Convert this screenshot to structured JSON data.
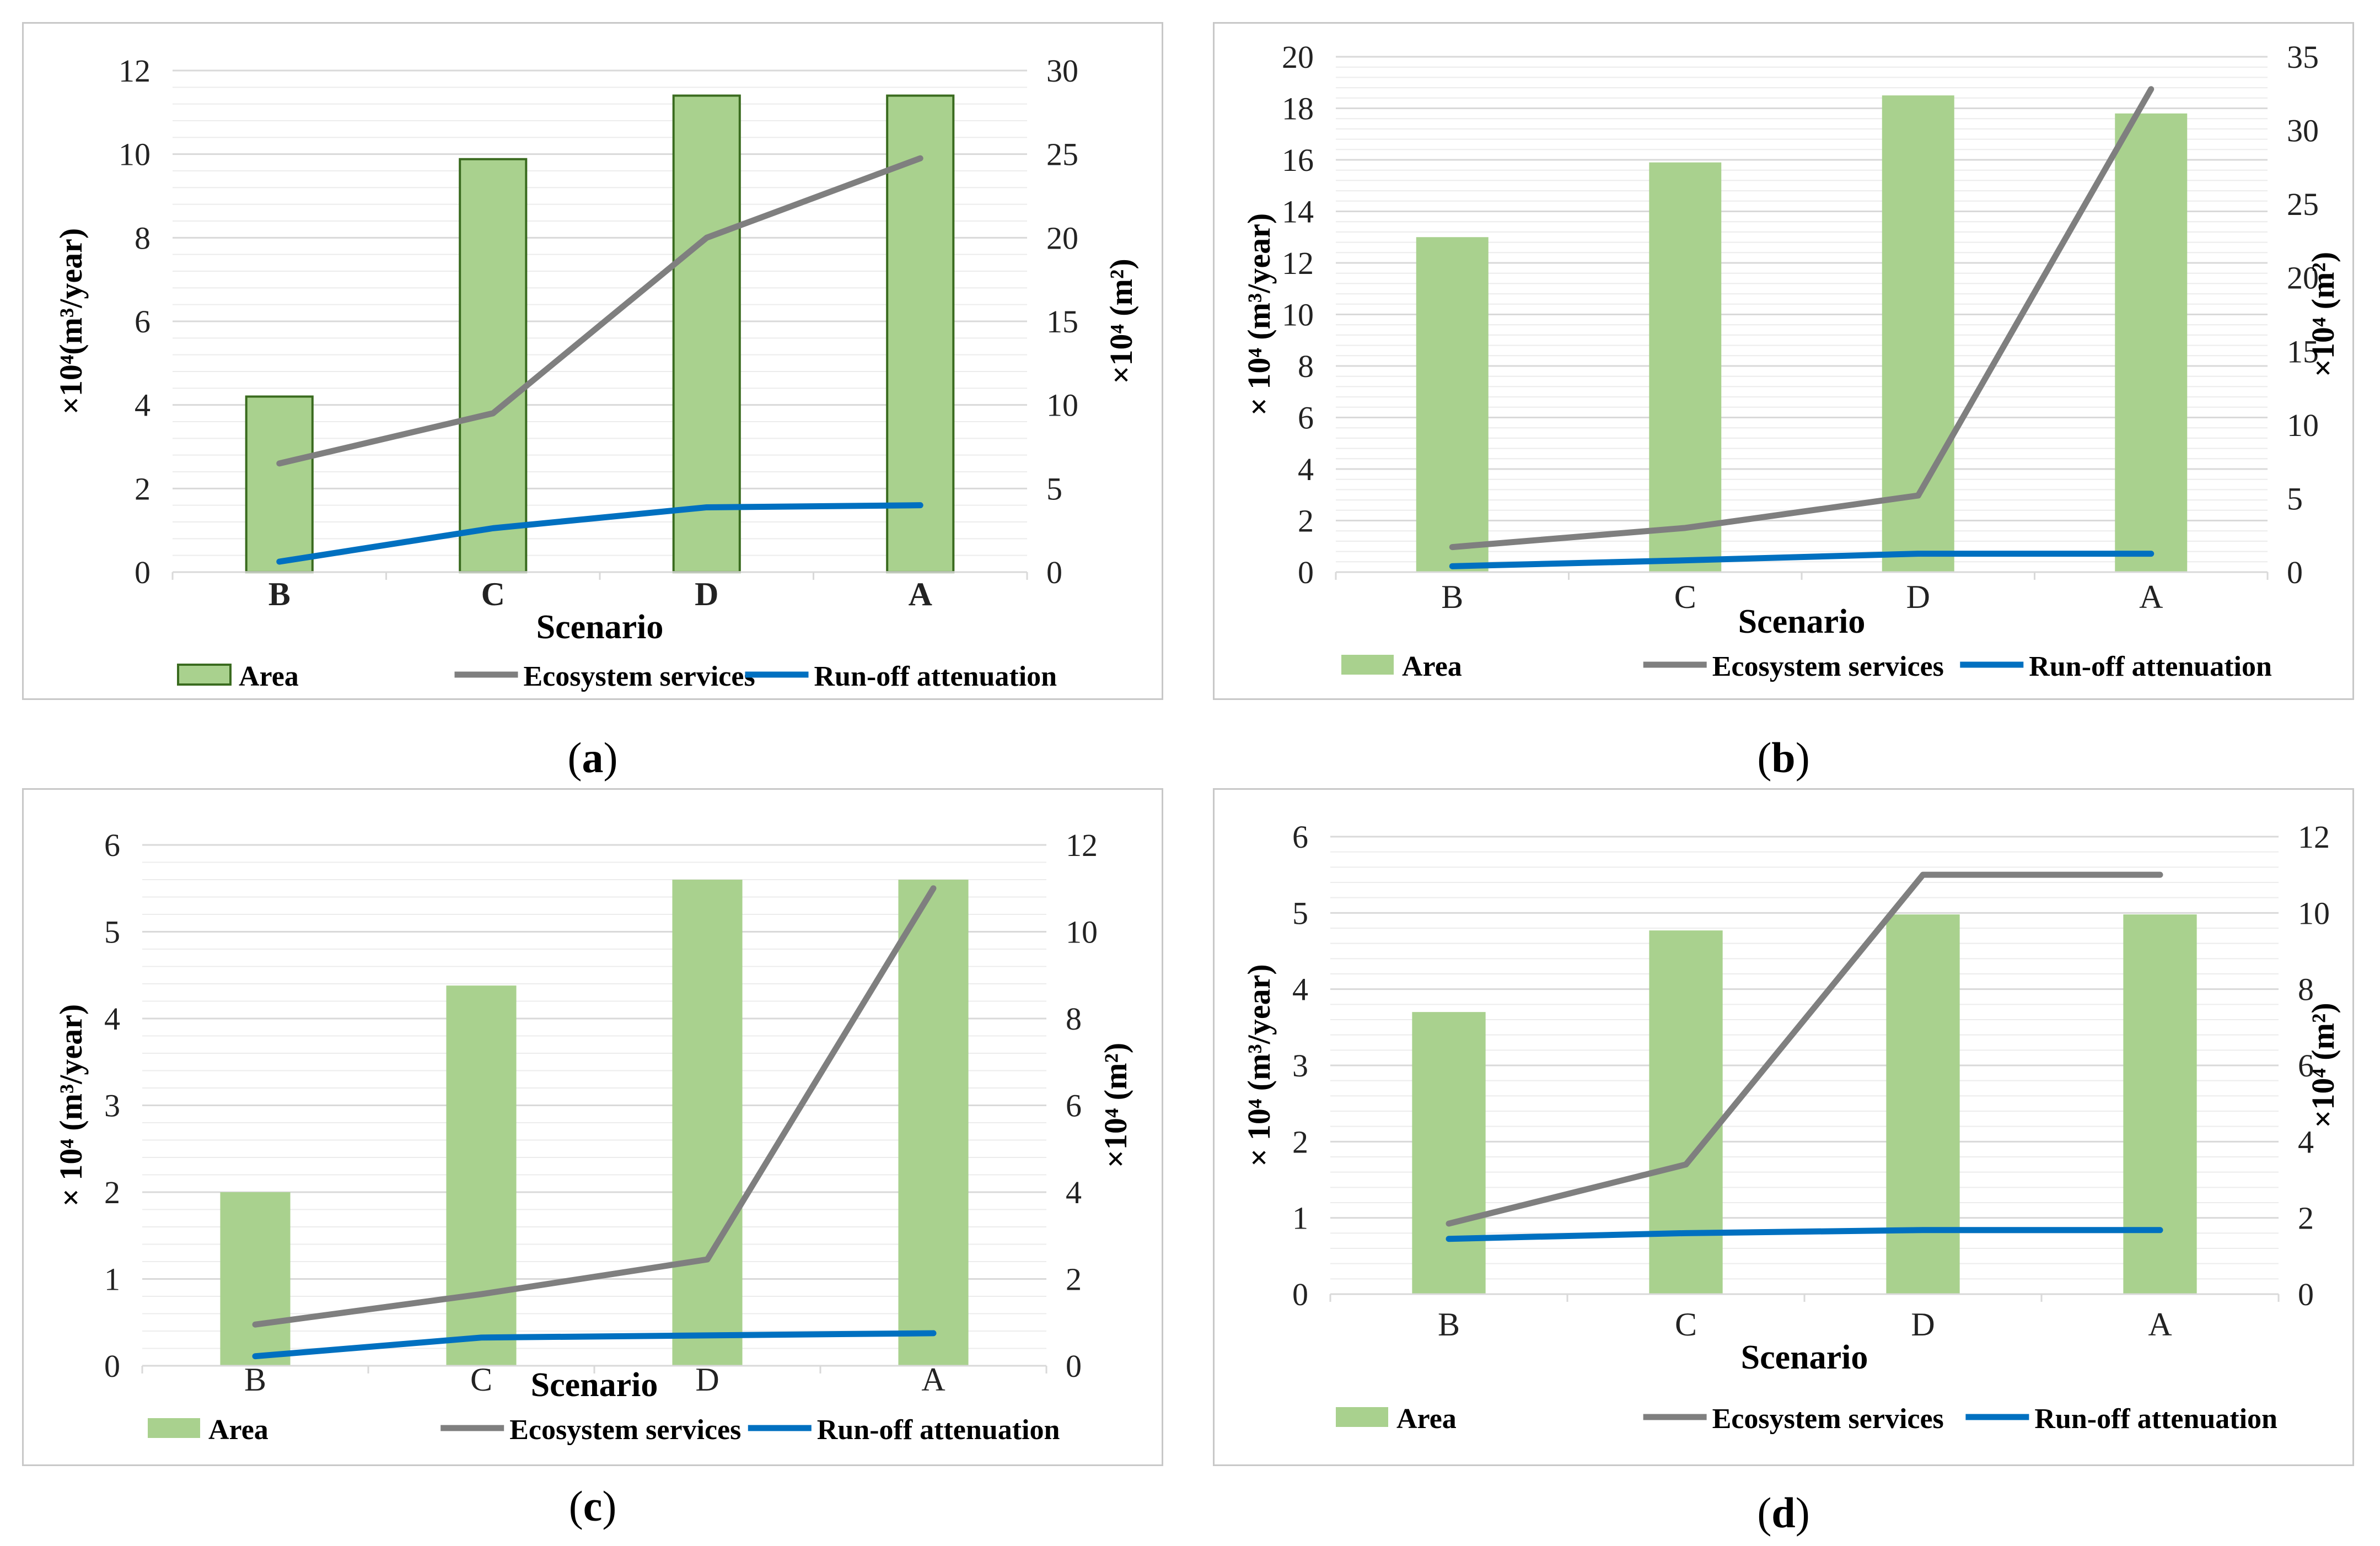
{
  "chart_data": [
    {
      "type": "bar",
      "caption_letter": "a",
      "categories": [
        "B",
        "C",
        "D",
        "A"
      ],
      "xlabel": "Scenario",
      "ylabel": "×10⁴(m³/year)",
      "y2label": "×10⁴ (m²)",
      "ylim": [
        0,
        12
      ],
      "yticks": [
        0,
        2,
        4,
        6,
        8,
        10,
        12
      ],
      "y2lim": [
        0,
        30
      ],
      "y2ticks": [
        0,
        5,
        10,
        15,
        20,
        25,
        30
      ],
      "grid": true,
      "legend_position": "bottom",
      "bold_categories": true,
      "series": [
        {
          "name": "Area",
          "kind": "bar",
          "axis": "right",
          "color": "#a9d18e",
          "edge": "#3a6b1f",
          "values": [
            10.5,
            24.7,
            28.5,
            28.5
          ]
        },
        {
          "name": "Ecosystem services",
          "kind": "line",
          "axis": "left",
          "color": "#7f7f7f",
          "values": [
            2.6,
            3.8,
            8.0,
            9.9
          ]
        },
        {
          "name": "Run-off attenuation",
          "kind": "line",
          "axis": "left",
          "color": "#0070c0",
          "values": [
            0.25,
            1.05,
            1.55,
            1.6
          ]
        }
      ]
    },
    {
      "type": "bar",
      "caption_letter": "b",
      "categories": [
        "B",
        "C",
        "D",
        "A"
      ],
      "xlabel": "Scenario",
      "ylabel": "× 10⁴ (m³/year)",
      "y2label": "×10⁴ (m²)",
      "ylim": [
        0,
        20
      ],
      "yticks": [
        0,
        2,
        4,
        6,
        8,
        10,
        12,
        14,
        16,
        18,
        20
      ],
      "y2lim": [
        0,
        35
      ],
      "y2ticks": [
        0,
        5,
        10,
        15,
        20,
        25,
        30,
        35
      ],
      "grid": true,
      "legend_position": "bottom",
      "bold_categories": false,
      "series": [
        {
          "name": "Area",
          "kind": "bar",
          "axis": "left",
          "color": "#a9d18e",
          "edge": "none",
          "values": [
            13.0,
            15.9,
            18.5,
            17.8
          ]
        },
        {
          "name": "Ecosystem services",
          "kind": "line",
          "axis": "right",
          "color": "#7f7f7f",
          "values": [
            1.7,
            3.0,
            5.2,
            32.8
          ]
        },
        {
          "name": "Run-off attenuation",
          "kind": "line",
          "axis": "right",
          "color": "#0070c0",
          "values": [
            0.4,
            0.8,
            1.25,
            1.25
          ]
        }
      ]
    },
    {
      "type": "bar",
      "caption_letter": "c",
      "categories": [
        "B",
        "C",
        "D",
        "A"
      ],
      "xlabel": "Scenario",
      "ylabel": "× 10⁴ (m³/year)",
      "y2label": "×10⁴ (m²)",
      "ylim": [
        0,
        6
      ],
      "yticks": [
        0,
        1,
        2,
        3,
        4,
        5,
        6
      ],
      "y2lim": [
        0,
        12
      ],
      "y2ticks": [
        0,
        2,
        4,
        6,
        8,
        10,
        12
      ],
      "grid": true,
      "legend_position": "bottom",
      "bold_categories": false,
      "series": [
        {
          "name": "Area",
          "kind": "bar",
          "axis": "left",
          "color": "#a9d18e",
          "edge": "none",
          "values": [
            2.0,
            4.38,
            5.6,
            5.6
          ]
        },
        {
          "name": "Ecosystem services",
          "kind": "line",
          "axis": "right",
          "color": "#7f7f7f",
          "values": [
            0.95,
            1.65,
            2.45,
            11.0
          ]
        },
        {
          "name": "Run-off attenuation",
          "kind": "line",
          "axis": "right",
          "color": "#0070c0",
          "values": [
            0.22,
            0.65,
            0.7,
            0.75
          ]
        }
      ]
    },
    {
      "type": "bar",
      "caption_letter": "d",
      "categories": [
        "B",
        "C",
        "D",
        "A"
      ],
      "xlabel": "Scenario",
      "ylabel": "× 10⁴ (m³/year)",
      "y2label": "×10⁴ (m²)",
      "ylim": [
        0,
        6
      ],
      "yticks": [
        0,
        1,
        2,
        3,
        4,
        5,
        6
      ],
      "y2lim": [
        0,
        12
      ],
      "y2ticks": [
        0,
        2,
        4,
        6,
        8,
        10,
        12
      ],
      "grid": true,
      "legend_position": "bottom",
      "bold_categories": false,
      "series": [
        {
          "name": "Area",
          "kind": "bar",
          "axis": "left",
          "color": "#a9d18e",
          "edge": "none",
          "values": [
            3.7,
            4.77,
            4.98,
            4.98
          ]
        },
        {
          "name": "Ecosystem services",
          "kind": "line",
          "axis": "right",
          "color": "#7f7f7f",
          "values": [
            1.85,
            3.4,
            11.0,
            11.0
          ]
        },
        {
          "name": "Run-off attenuation",
          "kind": "line",
          "axis": "right",
          "color": "#0070c0",
          "values": [
            1.45,
            1.6,
            1.68,
            1.68
          ]
        }
      ]
    }
  ]
}
